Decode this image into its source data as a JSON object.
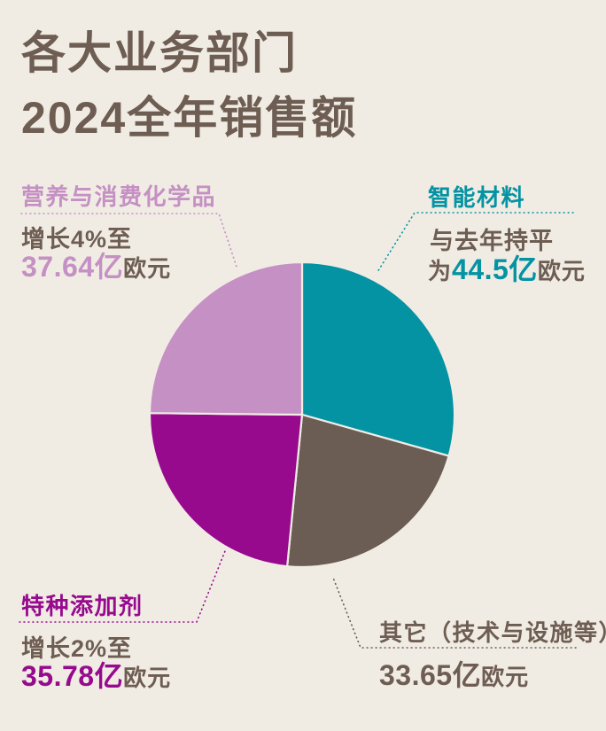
{
  "page": {
    "background_color": "#F0ECE4",
    "text_color": "#6E5D52"
  },
  "title": {
    "line1": "各大业务部门",
    "line2": "2024全年销售额"
  },
  "chart_data": {
    "type": "pie",
    "title": "各大业务部门2024全年销售额",
    "unit": "亿欧元",
    "start_angle_deg": 0,
    "direction": "clockwise",
    "legend_position": "callout-labels",
    "segments": [
      {
        "name": "智能材料",
        "value": 44.5,
        "color": "#0493A3",
        "note": "与去年持平",
        "display_value": "44.5亿欧元"
      },
      {
        "name": "其它（技术与设施等）",
        "value": 33.65,
        "color": "#6B5C54",
        "note": "",
        "display_value": "33.65亿欧元"
      },
      {
        "name": "特种添加剂",
        "value": 35.78,
        "color": "#970A8E",
        "note": "增长2%至",
        "display_value": "35.78亿欧元"
      },
      {
        "name": "营养与消费化学品",
        "value": 37.64,
        "color": "#C590C3",
        "note": "增长4%至",
        "display_value": "37.64亿欧元"
      }
    ]
  },
  "labels": {
    "top_left": {
      "heading": "营养与消费化学品",
      "line1": "增长4%至",
      "prefix": "",
      "value": "37.64亿",
      "suffix": "欧元"
    },
    "top_right": {
      "heading": "智能材料",
      "line1": "与去年持平",
      "prefix": "为",
      "value": "44.5亿",
      "suffix": "欧元"
    },
    "bottom_left": {
      "heading": "特种添加剂",
      "line1": "增长2%至",
      "prefix": "",
      "value": "35.78亿",
      "suffix": "欧元"
    },
    "bottom_right": {
      "heading": "其它（技术与设施等）",
      "line1": "",
      "prefix": "",
      "value": "33.65亿",
      "suffix": "欧元"
    }
  }
}
